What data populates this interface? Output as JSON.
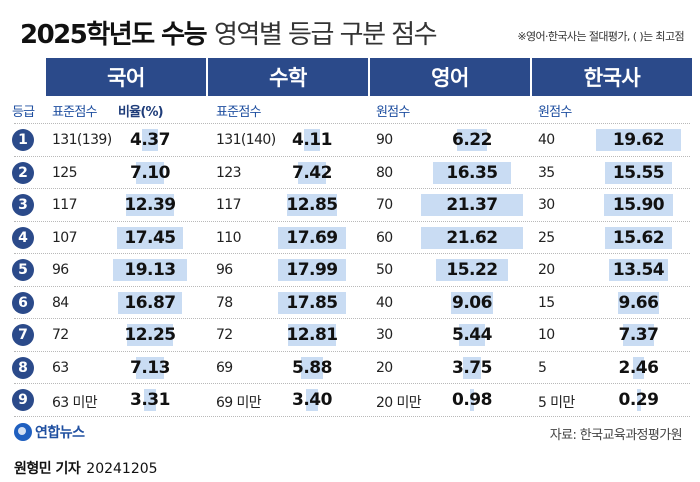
{
  "title": {
    "bold": "2025학년도 수능",
    "light": "영역별 등급 구분 점수"
  },
  "note": "※영어·한국사는 절대평가, ( )는 최고점",
  "chart_data": {
    "type": "table",
    "grade_header": "등급",
    "grades": [
      "1",
      "2",
      "3",
      "4",
      "5",
      "6",
      "7",
      "8",
      "9"
    ],
    "subjects": [
      {
        "name": "국어",
        "score_label": "표준점수",
        "pct_label": "비율(%)",
        "scores": [
          "131(139)",
          "125",
          "117",
          "107",
          "96",
          "84",
          "72",
          "63",
          "63 미만"
        ],
        "percent": [
          4.37,
          7.1,
          12.39,
          17.45,
          19.13,
          16.87,
          12.25,
          7.13,
          3.31
        ],
        "percent_text": [
          "4.37",
          "7.10",
          "12.39",
          "17.45",
          "19.13",
          "16.87",
          "12.25",
          "7.13",
          "3.31"
        ]
      },
      {
        "name": "수학",
        "score_label": "표준점수",
        "scores": [
          "131(140)",
          "123",
          "117",
          "110",
          "96",
          "78",
          "72",
          "69",
          "69 미만"
        ],
        "percent": [
          4.11,
          7.42,
          12.85,
          17.69,
          17.99,
          17.85,
          12.81,
          5.88,
          3.4
        ],
        "percent_text": [
          "4.11",
          "7.42",
          "12.85",
          "17.69",
          "17.99",
          "17.85",
          "12.81",
          "5.88",
          "3.40"
        ]
      },
      {
        "name": "영어",
        "score_label": "원점수",
        "scores": [
          "90",
          "80",
          "70",
          "60",
          "50",
          "40",
          "30",
          "20",
          "20 미만"
        ],
        "percent": [
          6.22,
          16.35,
          21.37,
          21.62,
          15.22,
          9.06,
          5.44,
          3.75,
          0.98
        ],
        "percent_text": [
          "6.22",
          "16.35",
          "21.37",
          "21.62",
          "15.22",
          "9.06",
          "5.44",
          "3.75",
          "0.98"
        ]
      },
      {
        "name": "한국사",
        "score_label": "원점수",
        "scores": [
          "40",
          "35",
          "30",
          "25",
          "20",
          "15",
          "10",
          "5",
          "5 미만"
        ],
        "percent": [
          19.62,
          15.55,
          15.9,
          15.62,
          13.54,
          9.66,
          7.37,
          2.46,
          0.29
        ],
        "percent_text": [
          "19.62",
          "15.55",
          "15.90",
          "15.62",
          "13.54",
          "9.66",
          "7.37",
          "2.46",
          "0.29"
        ]
      }
    ]
  },
  "colors": {
    "header_bg": "#2b4a8a",
    "bar": "#c9dcf3",
    "accent_text": "#1f4fa0"
  },
  "footer": {
    "logo_text": "연합뉴스",
    "logo_icon": "yonhap-logo-icon",
    "source": "자료: 한국교육과정평가원",
    "credit_name": "원형민 기자",
    "credit_date": "20241205"
  }
}
